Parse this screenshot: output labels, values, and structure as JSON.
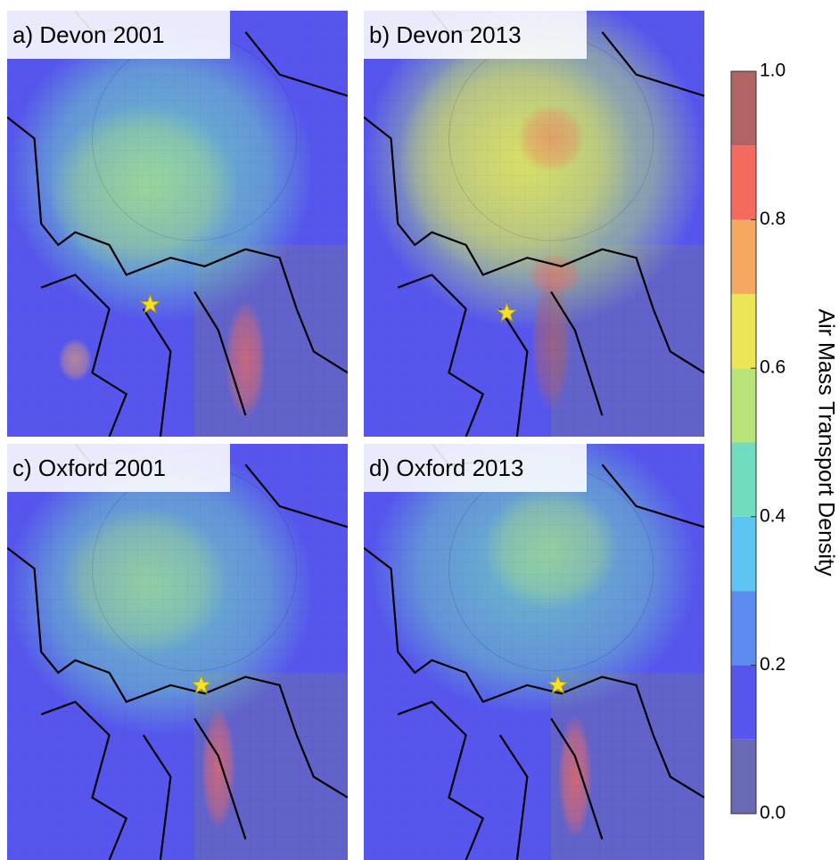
{
  "chart_data": {
    "type": "map-panels",
    "panels": [
      {
        "label": "a) Devon 2001"
      },
      {
        "label": "b) Devon 2013"
      },
      {
        "label": "c) Oxford 2001"
      },
      {
        "label": "d) Oxford 2013"
      }
    ],
    "colorbar": {
      "label": "Air Mass Transport Density",
      "levels": [
        0,
        0.1,
        0.2,
        0.3,
        0.4,
        0.5,
        0.6,
        0.7,
        0.8,
        0.9,
        1
      ],
      "colors": [
        "#6a6ab4",
        "#5656ee",
        "#5c8cef",
        "#5ec4f2",
        "#72dcc0",
        "#b8e47a",
        "#ece656",
        "#f4a860",
        "#f46a5e",
        "#b26464"
      ],
      "ylim": [
        0,
        1
      ],
      "yticks": [
        {
          "value": 0,
          "label": "0.0"
        },
        {
          "value": 0.2,
          "label": "0.2"
        },
        {
          "value": 0.4,
          "label": "0.4"
        },
        {
          "value": 0.6,
          "label": "0.6"
        },
        {
          "value": 0.8,
          "label": "0.8"
        },
        {
          "value": 1,
          "label": "1.0"
        }
      ]
    }
  }
}
